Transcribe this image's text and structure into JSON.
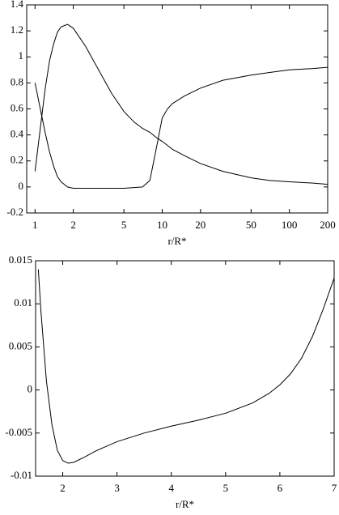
{
  "chart_data": [
    {
      "type": "line",
      "xlabel": "r/R*",
      "xscale": "log",
      "x": [
        1,
        1.1,
        1.2,
        1.3,
        1.4,
        1.5,
        1.6,
        1.8,
        2,
        2.5,
        3,
        4,
        5,
        6,
        7,
        8,
        9,
        10,
        11,
        12,
        15,
        20,
        30,
        50,
        70,
        100,
        150,
        200
      ],
      "series": [
        {
          "color": "#000000",
          "values": [
            0.8,
            0.6,
            0.42,
            0.27,
            0.16,
            0.08,
            0.04,
            0.0,
            -0.01,
            -0.01,
            -0.01,
            -0.01,
            -0.01,
            -0.005,
            0.0,
            0.05,
            0.3,
            0.53,
            0.6,
            0.64,
            0.7,
            0.76,
            0.82,
            0.86,
            0.88,
            0.9,
            0.91,
            0.92
          ]
        },
        {
          "color": "#000000",
          "values": [
            0.12,
            0.45,
            0.75,
            0.97,
            1.1,
            1.19,
            1.23,
            1.25,
            1.22,
            1.08,
            0.94,
            0.72,
            0.58,
            0.5,
            0.45,
            0.42,
            0.38,
            0.35,
            0.32,
            0.29,
            0.24,
            0.18,
            0.12,
            0.07,
            0.05,
            0.04,
            0.03,
            0.02
          ]
        }
      ],
      "xlim": [
        0.86,
        200
      ],
      "xticks": [
        1,
        2,
        5,
        10,
        20,
        50,
        100,
        200
      ],
      "ylim": [
        -0.2,
        1.4
      ],
      "yticks": [
        -0.2,
        0,
        0.2,
        0.4,
        0.6,
        0.8,
        1,
        1.2,
        1.4
      ]
    },
    {
      "type": "line",
      "xlabel": "r/R*",
      "x": [
        1.55,
        1.6,
        1.7,
        1.8,
        1.9,
        2.0,
        2.1,
        2.2,
        2.4,
        2.6,
        3,
        3.5,
        4,
        4.5,
        5,
        5.5,
        5.8,
        6,
        6.2,
        6.4,
        6.6,
        6.8,
        7
      ],
      "series": [
        {
          "color": "#000000",
          "values": [
            0.014,
            0.009,
            0.001,
            -0.004,
            -0.007,
            -0.0082,
            -0.0085,
            -0.0084,
            -0.0078,
            -0.0071,
            -0.006,
            -0.005,
            -0.0042,
            -0.0035,
            -0.0027,
            -0.0015,
            -0.0004,
            0.0006,
            0.0019,
            0.0037,
            0.0062,
            0.0094,
            0.013
          ]
        }
      ],
      "xlim": [
        1.5,
        7
      ],
      "xticks": [
        2,
        3,
        4,
        5,
        6,
        7
      ],
      "ylim": [
        -0.01,
        0.015
      ],
      "yticks": [
        -0.01,
        -0.005,
        0,
        0.005,
        0.01,
        0.015
      ]
    }
  ]
}
